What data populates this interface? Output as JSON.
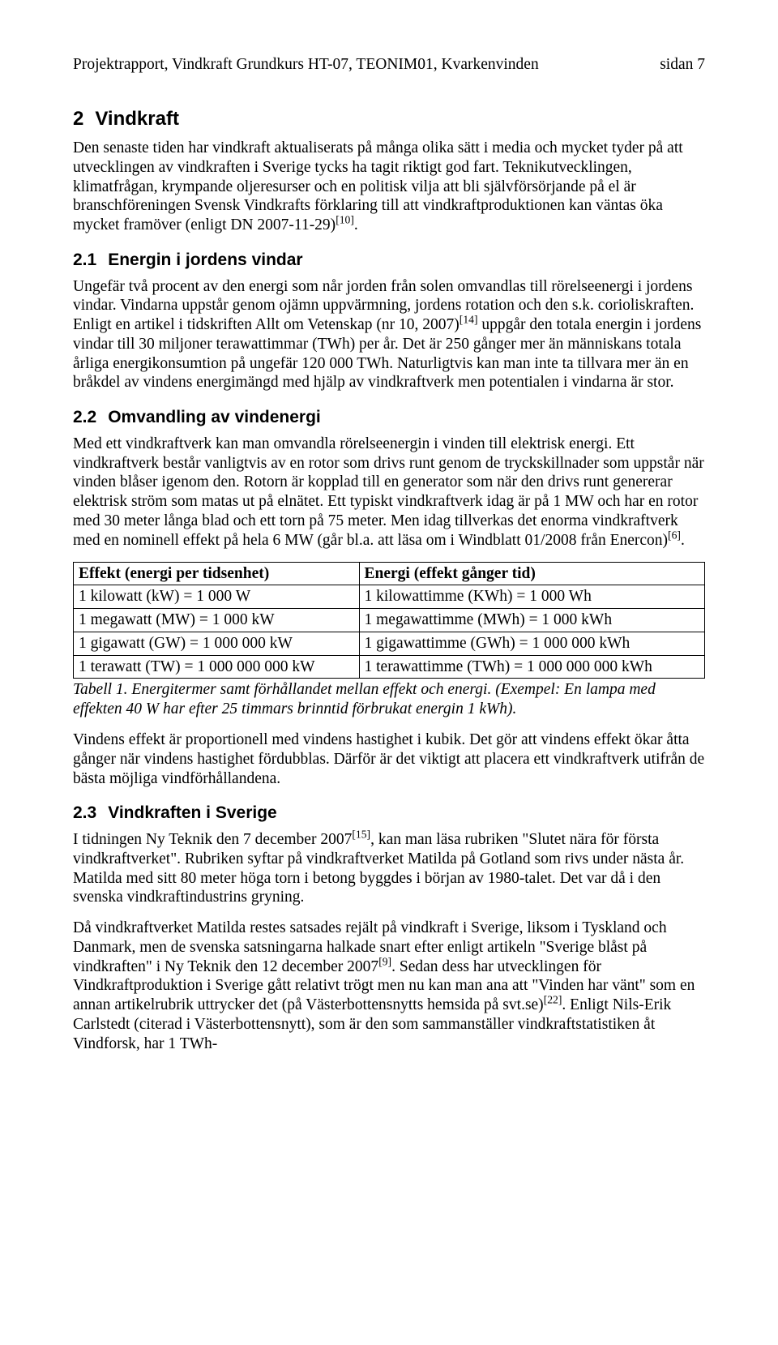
{
  "header": {
    "left": "Projektrapport, Vindkraft Grundkurs HT-07, TEONIM01, Kvarkenvinden",
    "right": "sidan 7"
  },
  "sec2": {
    "num": "2",
    "title": "Vindkraft",
    "p1_a": "Den senaste tiden har vindkraft aktualiserats på många olika sätt i media och mycket tyder på att utvecklingen av vindkraften i Sverige tycks ha tagit riktigt god fart. Teknikutvecklingen, klimatfrågan, krympande oljeresurser och en politisk vilja att bli självförsörjande på el är branschföreningen Svensk Vindkrafts förklaring till att vindkraftproduktionen kan väntas öka mycket framöver (enligt DN 2007-11-29)",
    "p1_ref": "[10]",
    "p1_b": "."
  },
  "sec21": {
    "num": "2.1",
    "title": "Energin i jordens vindar",
    "p1_a": "Ungefär två procent av den energi som når jorden från solen omvandlas till rörelseenergi i jordens vindar. Vindarna uppstår genom ojämn uppvärmning, jordens rotation och den s.k. corioliskraften. Enligt en artikel i tidskriften Allt om Vetenskap (nr 10, 2007)",
    "p1_ref": "[14]",
    "p1_b": " uppgår den totala energin i jordens vindar till 30 miljoner terawattimmar (TWh) per år. Det är 250 gånger mer än människans totala årliga energikonsumtion på ungefär 120 000 TWh. Naturligtvis kan man inte ta tillvara mer än en bråkdel av vindens energimängd med hjälp av vindkraftverk men potentialen i vindarna är stor."
  },
  "sec22": {
    "num": "2.2",
    "title": "Omvandling av vindenergi",
    "p1_a": "Med ett vindkraftverk kan man omvandla rörelseenergin i vinden till elektrisk energi. Ett vindkraftverk består vanligtvis av en rotor som drivs runt genom de tryckskillnader som uppstår när vinden blåser igenom den. Rotorn är kopplad till en generator som när den drivs runt genererar elektrisk ström som matas ut på elnätet. Ett typiskt vindkraftverk idag är på 1 MW och har en rotor med 30 meter långa blad och ett torn på 75 meter. Men idag tillverkas det enorma vindkraftverk med en nominell effekt på hela 6 MW (går bl.a. att läsa om i Windblatt 01/2008 från Enercon)",
    "p1_ref": "[6]",
    "p1_b": ".",
    "table": {
      "h1": "Effekt (energi per tidsenhet)",
      "h2": "Energi (effekt gånger tid)",
      "rows": [
        [
          "1 kilowatt (kW) = 1 000 W",
          "1 kilowattimme (KWh) = 1 000 Wh"
        ],
        [
          "1 megawatt (MW) = 1 000 kW",
          "1 megawattimme (MWh) = 1 000 kWh"
        ],
        [
          "1 gigawatt (GW) = 1 000 000 kW",
          "1 gigawattimme (GWh) = 1 000 000 kWh"
        ],
        [
          "1 terawatt (TW) = 1 000 000 000 kW",
          "1 terawattimme (TWh) = 1 000 000 000 kWh"
        ]
      ]
    },
    "caption": "Tabell 1. Energitermer samt förhållandet mellan effekt och energi. (Exempel: En lampa med effekten 40 W har efter 25 timmars brinntid förbrukat energin 1 kWh).",
    "p2": "Vindens effekt är proportionell med vindens hastighet i kubik. Det gör att vindens effekt ökar åtta gånger när vindens hastighet fördubblas. Därför är det viktigt att placera ett vindkraftverk utifrån de bästa möjliga vindförhållandena."
  },
  "sec23": {
    "num": "2.3",
    "title": "Vindkraften i Sverige",
    "p1_a": "I tidningen Ny Teknik den 7 december 2007",
    "p1_ref": "[15]",
    "p1_b": ", kan man läsa rubriken \"Slutet nära för första vindkraftverket\". Rubriken syftar på vindkraftverket Matilda på Gotland som rivs under nästa år. Matilda med sitt 80 meter höga torn i betong byggdes i början av 1980-talet. Det var då i den svenska vindkraftindustrins gryning.",
    "p2_a": "Då vindkraftverket Matilda restes satsades rejält på vindkraft i Sverige, liksom i Tyskland och Danmark, men de svenska satsningarna halkade snart efter enligt artikeln \"Sverige blåst på vindkraften\" i Ny Teknik den 12 december 2007",
    "p2_ref1": "[9]",
    "p2_b": ". Sedan dess har utvecklingen för Vindkraftproduktion i Sverige gått relativt trögt men nu kan man ana att \"Vinden har vänt\" som en annan artikelrubrik uttrycker det (på Västerbottensnytts hemsida på svt.se)",
    "p2_ref2": "[22]",
    "p2_c": ". Enligt Nils-Erik Carlstedt (citerad i Västerbottensnytt), som är den som sammanställer vindkraftstatistiken åt Vindforsk, har 1 TWh-"
  }
}
